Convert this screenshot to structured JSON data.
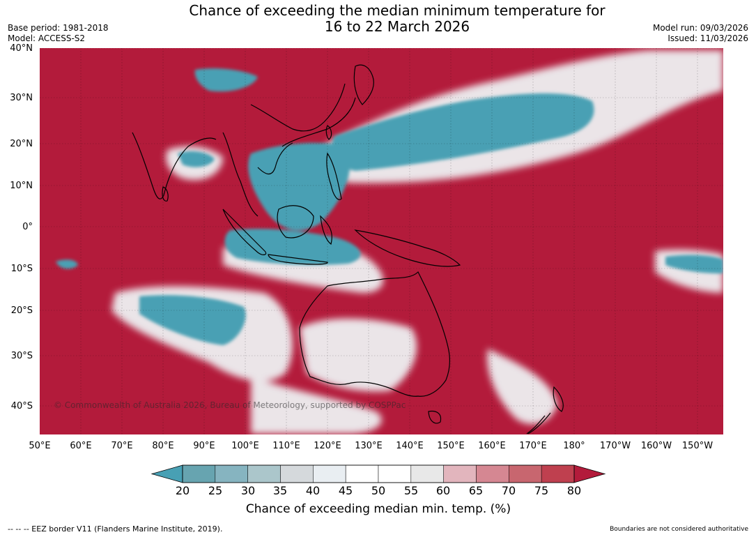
{
  "title": {
    "line1": "Chance of exceeding the median minimum temperature for",
    "line2": "16 to 22 March 2026"
  },
  "meta_left": {
    "base_period": "Base period: 1981-2018",
    "model": "Model: ACCESS-S2"
  },
  "meta_right": {
    "model_run": "Model run: 09/03/2026",
    "issued": "Issued: 11/03/2026"
  },
  "map": {
    "lat_labels": [
      "40°N",
      "30°N",
      "20°N",
      "10°N",
      "0°",
      "10°S",
      "20°S",
      "30°S",
      "40°S"
    ],
    "lon_labels": [
      "50°E",
      "60°E",
      "70°E",
      "80°E",
      "90°E",
      "100°E",
      "110°E",
      "120°E",
      "130°E",
      "140°E",
      "150°E",
      "160°E",
      "170°E",
      "180°",
      "170°W",
      "160°W",
      "150°W"
    ],
    "copyright": "© Commonwealth of Australia 2026, Bureau of Meteorology, supported by COSPPac",
    "colors": {
      "high": "#b31b3b",
      "low": "#48a0b4"
    }
  },
  "colorbar": {
    "ticks": [
      "20",
      "25",
      "30",
      "35",
      "40",
      "45",
      "50",
      "55",
      "60",
      "65",
      "70",
      "75",
      "80"
    ],
    "colors": [
      "#67a4b0",
      "#86b4c0",
      "#abc6cb",
      "#d5d9dc",
      "#e9eef2",
      "#ffffff",
      "#ffffff",
      "#e8e8e8",
      "#e2b5bd",
      "#d58792",
      "#c8666f",
      "#bf404f"
    ],
    "under_color": "#48a0b4",
    "over_color": "#b31b3b",
    "label": "Chance of exceeding median min. temp. (%)"
  },
  "footer": {
    "eez": "--  --  -- EEZ border V11 (Flanders Marine Institute, 2019).",
    "boundaries": "Boundaries are not considered authoritative"
  }
}
